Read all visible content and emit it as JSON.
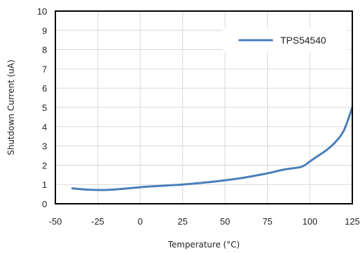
{
  "chart_data": {
    "type": "line",
    "title": "",
    "xlabel": "Temperature (°C)",
    "ylabel": "Shutdown Current (uA)",
    "xlim": [
      -50,
      125
    ],
    "ylim": [
      0,
      10
    ],
    "x_ticks": [
      -50,
      -25,
      0,
      25,
      50,
      75,
      100,
      125
    ],
    "y_ticks": [
      0,
      1,
      2,
      3,
      4,
      5,
      6,
      7,
      8,
      9,
      10
    ],
    "x_tick_labels": [
      "-50",
      "-25",
      "0",
      "25",
      "50",
      "75",
      "100",
      "125"
    ],
    "y_tick_labels": [
      "0",
      "1",
      "2",
      "3",
      "4",
      "5",
      "6",
      "7",
      "8",
      "9",
      "10"
    ],
    "grid": true,
    "legend_position": "top-right",
    "series": [
      {
        "name": "TPS54540",
        "color": "#4a7ebb",
        "points": [
          [
            -40,
            0.8
          ],
          [
            -30,
            0.73
          ],
          [
            -20,
            0.72
          ],
          [
            -10,
            0.78
          ],
          [
            0,
            0.86
          ],
          [
            10,
            0.92
          ],
          [
            25,
            1.0
          ],
          [
            40,
            1.12
          ],
          [
            50,
            1.22
          ],
          [
            60,
            1.34
          ],
          [
            75,
            1.58
          ],
          [
            85,
            1.78
          ],
          [
            95,
            1.92
          ],
          [
            100,
            2.2
          ],
          [
            105,
            2.5
          ],
          [
            110,
            2.8
          ],
          [
            115,
            3.2
          ],
          [
            120,
            3.8
          ],
          [
            125,
            5.0
          ]
        ]
      }
    ]
  }
}
